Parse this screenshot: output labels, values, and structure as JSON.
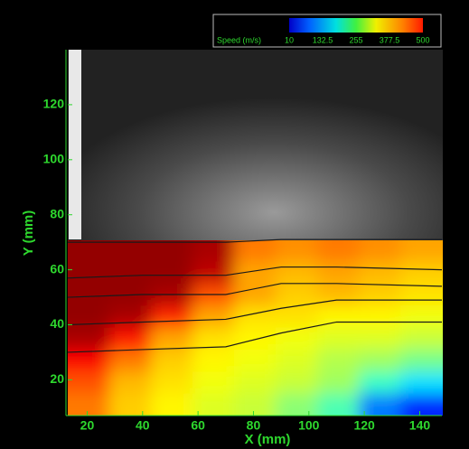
{
  "chart_data": {
    "type": "heatmap",
    "x_label": "X (mm)",
    "y_label": "Y (mm)",
    "xlim": [
      13,
      148
    ],
    "ylim": [
      7,
      140
    ],
    "xticks": [
      20,
      40,
      60,
      80,
      100,
      120,
      140
    ],
    "yticks": [
      20,
      40,
      60,
      80,
      100,
      120
    ],
    "colorbar": {
      "label": "Speed (m/s)",
      "clim": [
        10,
        500
      ],
      "ticks": [
        10,
        132.5,
        255,
        377.5,
        500
      ]
    },
    "field": {
      "x": [
        20.5,
        35.5,
        50.5,
        65.5,
        80.5,
        95.5,
        110.5,
        125.5,
        140.5
      ],
      "y": [
        67,
        59,
        51,
        43,
        35,
        27,
        19,
        11
      ],
      "values": [
        [
          490,
          490,
          490,
          480,
          380,
          370,
          380,
          370,
          360
        ],
        [
          490,
          490,
          490,
          470,
          360,
          350,
          360,
          350,
          340
        ],
        [
          490,
          490,
          480,
          400,
          360,
          340,
          350,
          340,
          330
        ],
        [
          490,
          480,
          420,
          360,
          330,
          330,
          320,
          320,
          310
        ],
        [
          480,
          430,
          360,
          330,
          320,
          310,
          300,
          300,
          290
        ],
        [
          440,
          380,
          340,
          320,
          310,
          300,
          280,
          270,
          250
        ],
        [
          400,
          350,
          330,
          310,
          300,
          290,
          270,
          220,
          180
        ],
        [
          380,
          340,
          320,
          300,
          290,
          260,
          230,
          130,
          90
        ]
      ]
    },
    "streamlines": {
      "color": "#1a1a1a",
      "x": [
        13,
        40,
        70,
        90,
        110,
        148
      ],
      "lines": [
        [
          70,
          70,
          70,
          71,
          71,
          71
        ],
        [
          57,
          58,
          58,
          61,
          61,
          60
        ],
        [
          50,
          51,
          51,
          55,
          55,
          54
        ],
        [
          40,
          41,
          42,
          46,
          49,
          49
        ],
        [
          30,
          31,
          32,
          37,
          41,
          41
        ]
      ]
    }
  }
}
